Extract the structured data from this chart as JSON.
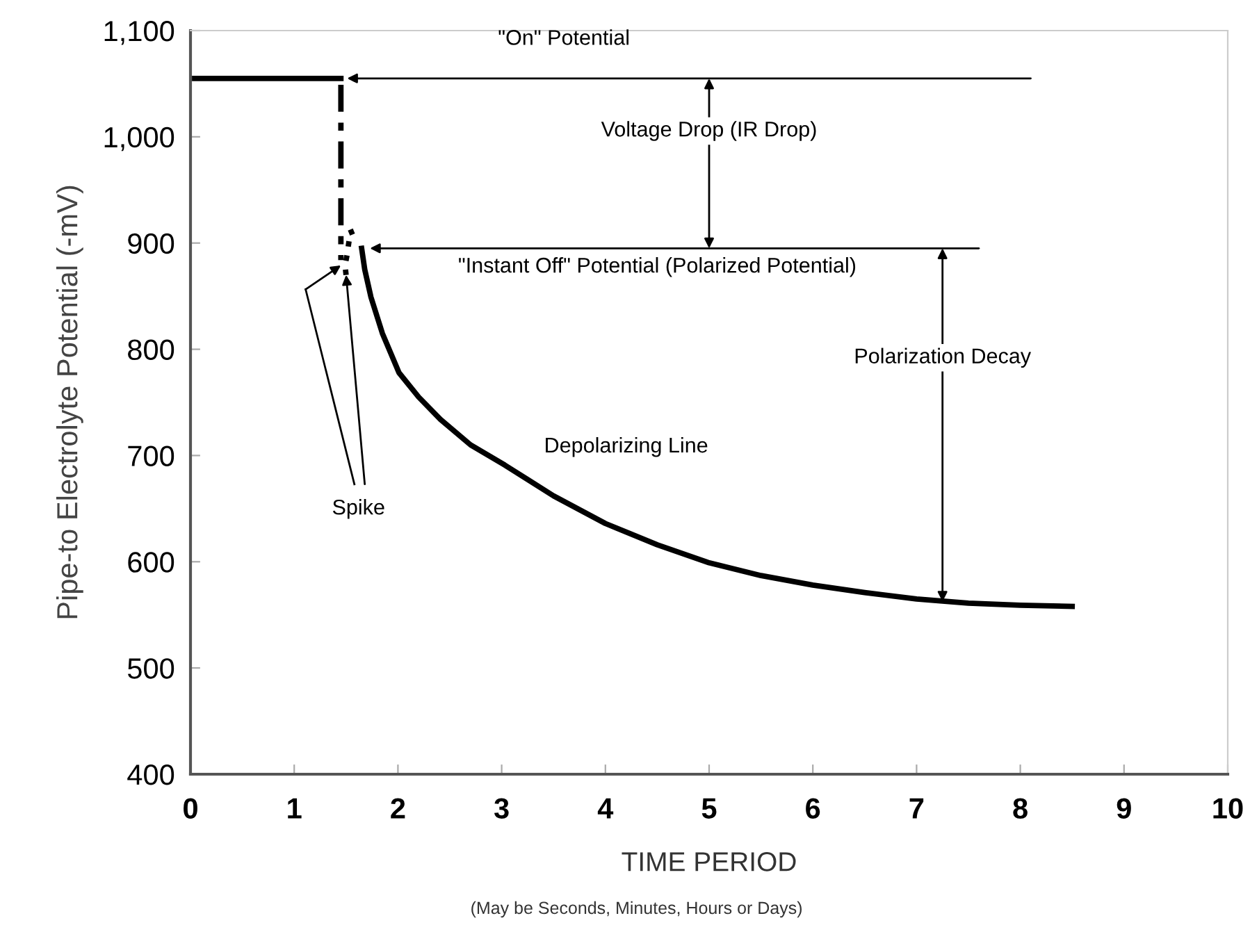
{
  "chart_data": {
    "type": "line",
    "xlabel": "TIME PERIOD",
    "ylabel": "Pipe-to Electrolyte Potential (-mV)",
    "xlim": [
      0,
      10
    ],
    "xticks": [
      0,
      1,
      2,
      3,
      4,
      5,
      6,
      7,
      8,
      9,
      10
    ],
    "ylim": [
      400,
      1100
    ],
    "yticks": [
      400,
      500,
      600,
      700,
      800,
      900,
      {
        "value": 1000,
        "label": "1,000"
      },
      {
        "value": 1100,
        "label": "1,100"
      }
    ],
    "grid": false,
    "legend": false,
    "marker": "none",
    "series": [
      {
        "color": "#000000",
        "line_style": "solid",
        "x": [
          0.04,
          1.45
        ],
        "values": [
          1055,
          1055
        ]
      },
      {
        "color": "#000000",
        "line_style": "dashed",
        "x": [
          1.45,
          1.45
        ],
        "values": [
          1049,
          884
        ]
      },
      {
        "color": "#000000",
        "line_style": "dotted",
        "x": [
          1.5,
          1.49,
          1.51,
          1.53,
          1.57,
          1.54
        ],
        "values": [
          870,
          879,
          889,
          903,
          906,
          913
        ]
      },
      {
        "color": "#000000",
        "line_style": "solid",
        "x": [
          1.65,
          1.68,
          1.74,
          1.85,
          2.01,
          2.2,
          2.41,
          2.7,
          3.03,
          3.5,
          4,
          4.5,
          5,
          5.5,
          6,
          6.5,
          7,
          7.5,
          8,
          8.5
        ],
        "values": [
          895,
          875,
          849,
          815,
          778,
          755,
          734,
          710,
          691,
          662,
          636,
          616,
          599,
          587,
          578,
          571,
          565,
          561,
          559,
          558
        ]
      }
    ],
    "annotations": [
      "\"On\" Potential",
      "\"Instant Off\" Potential (Polarized Potential)",
      "Voltage Drop (IR Drop)",
      "Polarization Decay",
      {
        "text": "Spike",
        "x": 1.5,
        "y": 870
      },
      "Depolarizing Line",
      "(May be Seconds, Minutes, Hours or Days)"
    ]
  }
}
